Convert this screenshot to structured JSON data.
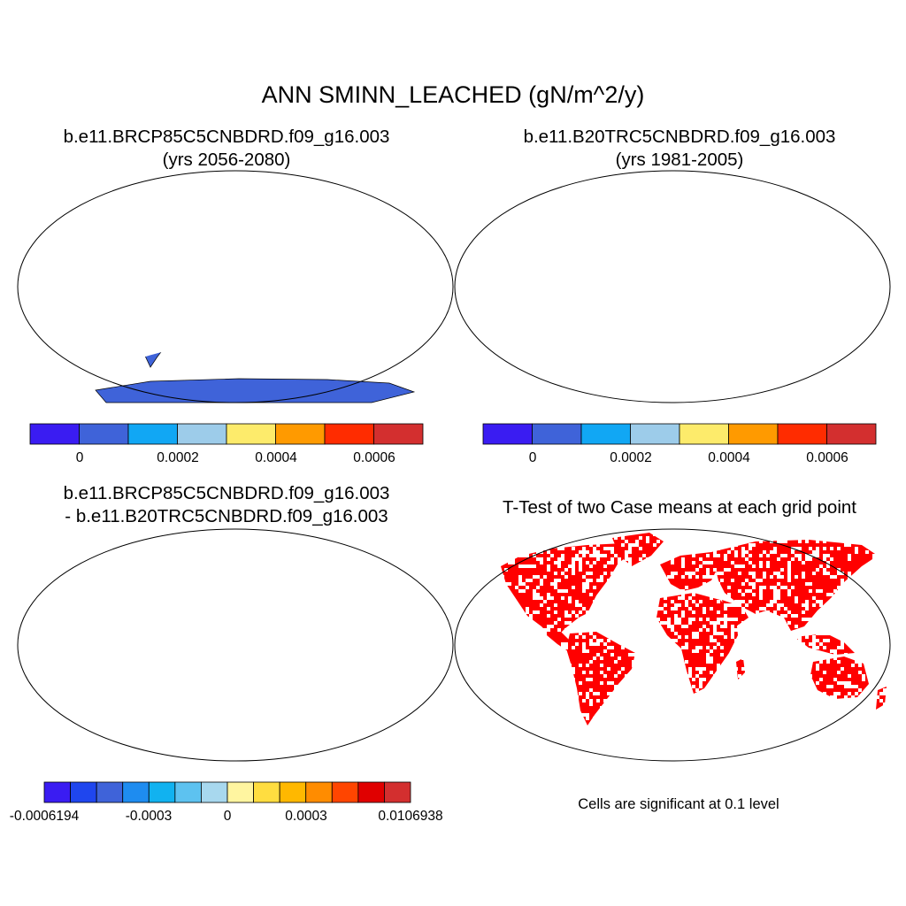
{
  "title": "ANN SMINN_LEACHED (gN/m^2/y)",
  "panels": [
    {
      "id": "case1",
      "title_line1": "b.e11.BRCP85C5CNBDRD.f09_g16.003",
      "title_line2": "(yrs 2056-2080)",
      "dominant_color": "#3F63D9",
      "hotspot_color": "#D63031"
    },
    {
      "id": "case2",
      "title_line1": "b.e11.B20TRC5CNBDRD.f09_g16.003",
      "title_line2": "(yrs 1981-2005)",
      "dominant_color": "#3F63D9",
      "hotspot_color": "#D63031"
    },
    {
      "id": "difference",
      "title_line1": "b.e11.BRCP85C5CNBDRD.f09_g16.003",
      "title_line2": "- b.e11.B20TRC5CNBDRD.f09_g16.003",
      "dominant_color": "#FFF5A0",
      "hotspot_color": "#D63031"
    },
    {
      "id": "ttest",
      "title_line1": "T-Test of two Case means at each grid point",
      "title_line2": "",
      "dominant_color": "#FF0000",
      "hotspot_color": "#FF0000"
    }
  ],
  "colorbar_abs": {
    "colors": [
      "#3A1CF2",
      "#3F63D9",
      "#11A7F4",
      "#9DCCEA",
      "#FDEB6B",
      "#FF9A00",
      "#FF2C00",
      "#D32F2F"
    ],
    "tick_labels": [
      "0",
      "0.0002",
      "0.0004",
      "0.0006"
    ]
  },
  "colorbar_diff": {
    "colors": [
      "#3A1CF2",
      "#1F46EE",
      "#3F63D9",
      "#1E8CF0",
      "#11B2F0",
      "#5DC2F0",
      "#A8D8EE",
      "#FFF5A0",
      "#FFDD40",
      "#FFB800",
      "#FF8C00",
      "#FF4500",
      "#E00000",
      "#D32F2F"
    ],
    "tick_labels": [
      "-0.0006194",
      "-0.0003",
      "0",
      "0.0003",
      "0.0106938"
    ]
  },
  "significance_note": "Cells are significant at 0.1 level"
}
